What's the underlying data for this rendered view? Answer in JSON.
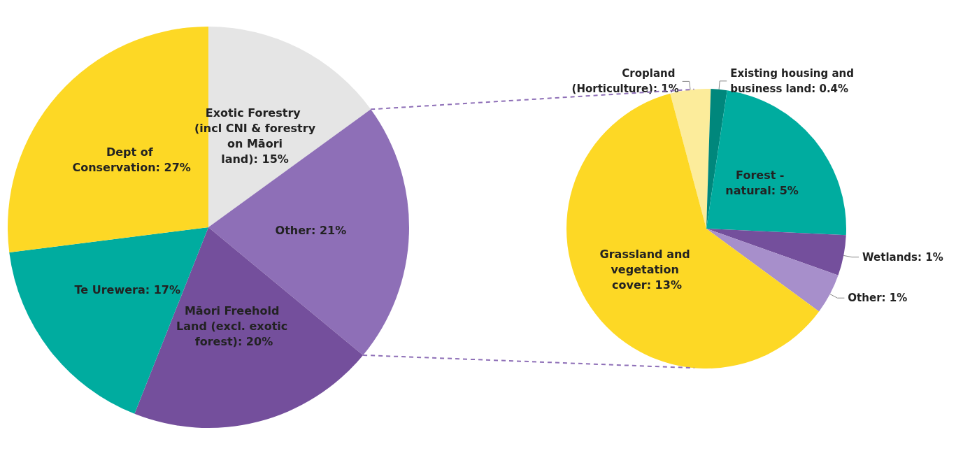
{
  "chart_data": [
    {
      "type": "pie",
      "categories": [
        "Exotic Forestry (incl CNI & forestry on Māori land)",
        "Other",
        "Māori Freehold Land (excl. exotic forest)",
        "Te Urewera",
        "Dept of Conservation"
      ],
      "values": [
        15,
        21,
        20,
        17,
        27
      ],
      "value_labels": [
        "15%",
        "21%",
        "20%",
        "17%",
        "27%"
      ],
      "colors": [
        "#e5e5e5",
        "#8e6fb7",
        "#744f9c",
        "#00ac9f",
        "#fdd825"
      ],
      "legend": false
    },
    {
      "type": "pie",
      "categories": [
        "Cropland (Horticulture)",
        "Existing housing and business land",
        "Forest - natural",
        "Wetlands",
        "Other",
        "Grassland and vegetation cover"
      ],
      "values": [
        1,
        0.4,
        5,
        1,
        1,
        13
      ],
      "value_labels": [
        "1%",
        "0.4%",
        "5%",
        "1%",
        "1%",
        "13%"
      ],
      "colors": [
        "#fcec9b",
        "#00877c",
        "#00ac9f",
        "#744f9c",
        "#a78fcb",
        "#fdd825"
      ],
      "legend": false
    }
  ]
}
